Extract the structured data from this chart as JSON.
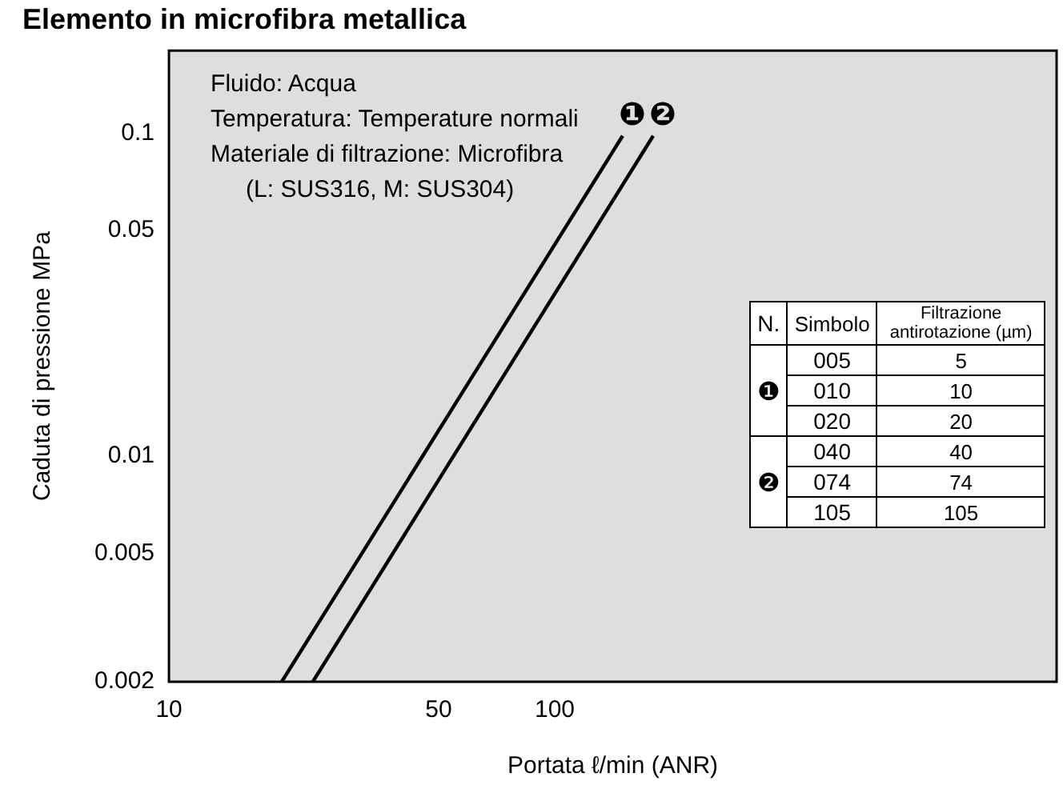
{
  "chart_data": {
    "type": "line",
    "title": "Elemento in microfibra metallica",
    "xlabel": "Portata ℓ/min (ANR)",
    "ylabel": "Caduta di pressione MPa",
    "log": "xy",
    "xlim": [
      10,
      2000
    ],
    "ylim": [
      0.002,
      0.18
    ],
    "xticks": [
      10,
      50,
      100
    ],
    "yticks": [
      0.002,
      0.005,
      0.01,
      0.05,
      0.1
    ],
    "grid": false,
    "legend": false,
    "marker": "none",
    "line_style": "solid",
    "annotations": [
      "Fluido: Acqua\nTemperatura: Temperature normali\nMateriale di filtrazione: Microfibra\n(L: SUS316, M: SUS304)",
      "N.",
      "Simbolo",
      "Filtrazione antirotazione (µm)",
      "❶",
      "005",
      "5",
      "010",
      "10",
      "020",
      "20",
      "❷",
      "040",
      "40",
      "074",
      "74",
      "105",
      "105"
    ],
    "series": [
      {
        "name": "❶",
        "color": "#000000",
        "x": [
          19.6,
          150
        ],
        "values": [
          0.002,
          0.098
        ]
      },
      {
        "name": "❷",
        "color": "#000000",
        "x": [
          23.6,
          180
        ],
        "values": [
          0.002,
          0.098
        ]
      }
    ]
  }
}
